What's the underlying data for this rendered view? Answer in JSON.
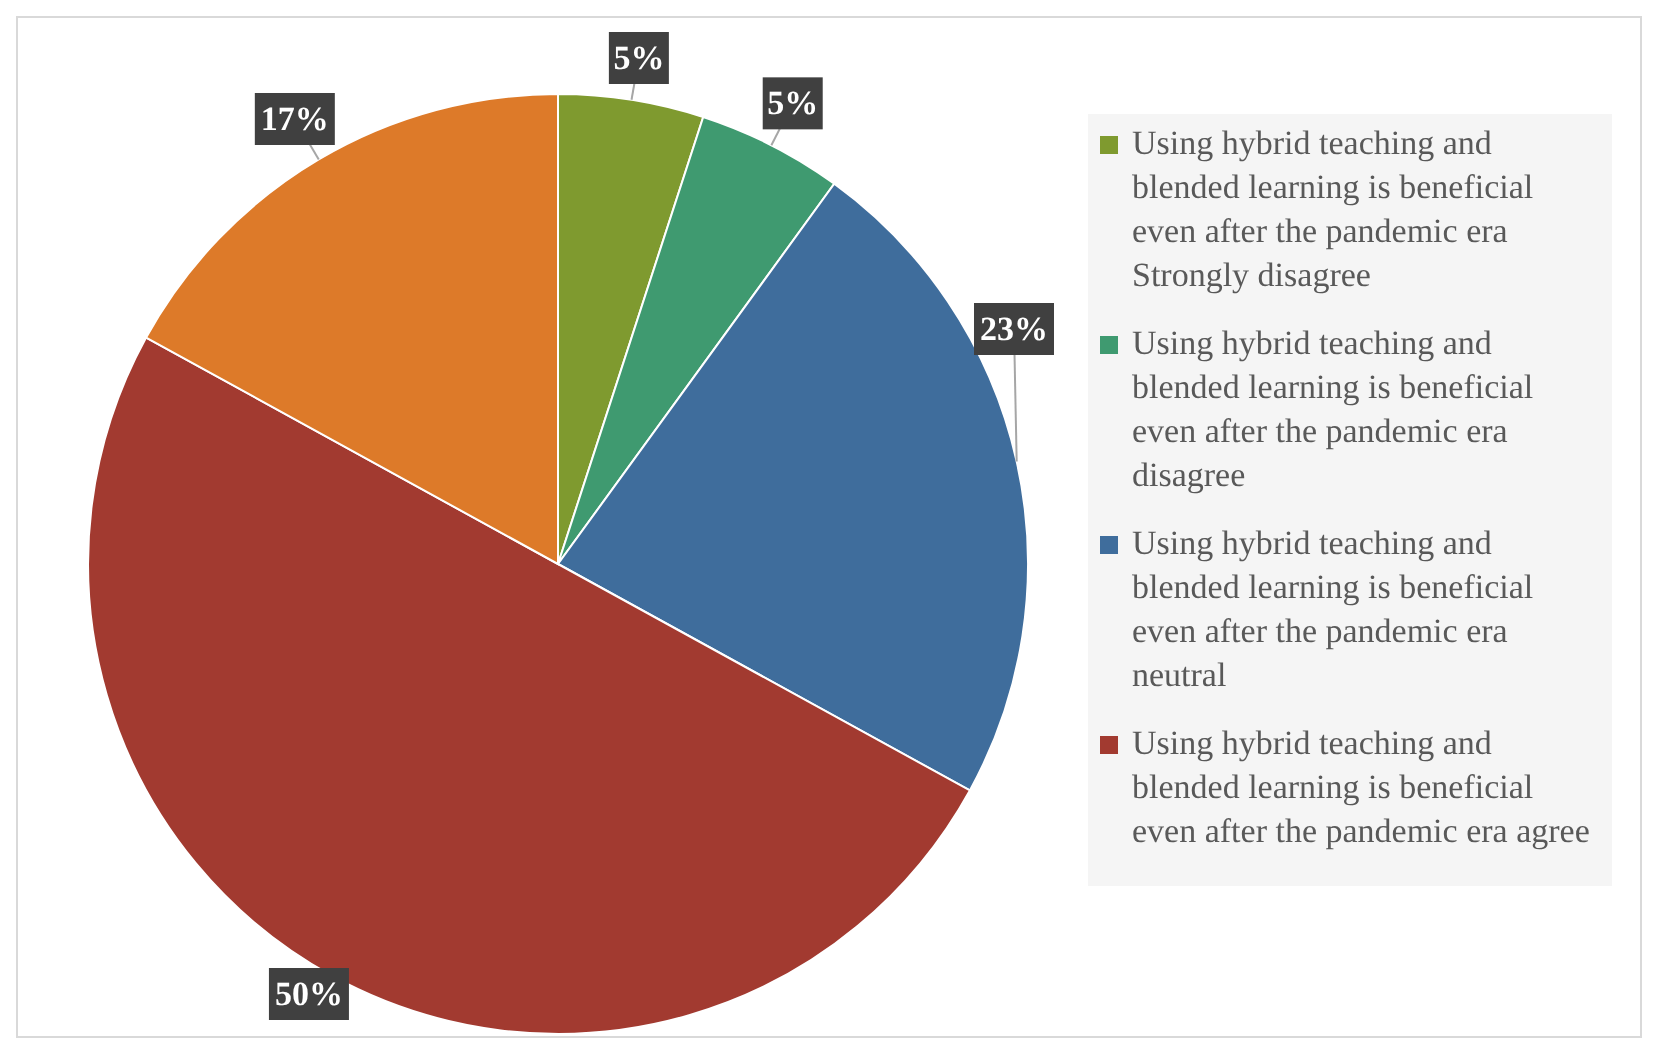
{
  "chart_data": {
    "type": "pie",
    "categories": [
      "Using hybrid teaching and blended learning is beneficial even after the pandemic era Strongly disagree",
      "Using hybrid teaching and blended learning is beneficial even after the pandemic era disagree",
      "Using hybrid teaching and blended learning is beneficial even after the pandemic era neutral",
      "Using hybrid teaching and blended learning is beneficial even after the pandemic era agree",
      null
    ],
    "values": [
      5,
      5,
      23,
      50,
      17
    ],
    "value_labels": [
      "5%",
      "5%",
      "23%",
      "50%",
      "17%"
    ],
    "colors": [
      "#7f9a2f",
      "#3f9a70",
      "#3f6d9c",
      "#a23a30",
      "#dd7a29"
    ],
    "legend": "right"
  }
}
